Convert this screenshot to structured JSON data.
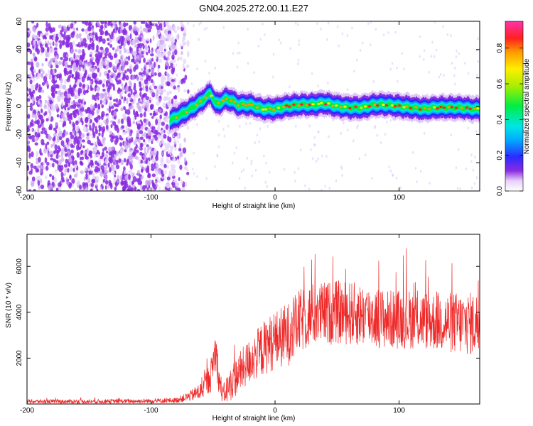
{
  "chart_data": [
    {
      "type": "heatmap",
      "title": "GN04.2025.272.00.11.E27",
      "xlabel": "Height of straight line (km)",
      "ylabel": "Frequency (Hz)",
      "xlim": [
        -200,
        165
      ],
      "ylim": [
        -60,
        60
      ],
      "x_ticks": [
        -200,
        -100,
        0,
        100
      ],
      "y_ticks": [
        60,
        40,
        20,
        0,
        -20,
        -40,
        -60
      ],
      "noise_region_x": [
        -200,
        -80
      ],
      "ridge": {
        "x": [
          -85,
          -80,
          -70,
          -60,
          -55,
          -52,
          -48,
          -45,
          -40,
          -35,
          -30,
          -20,
          -10,
          0,
          10,
          20,
          30,
          40,
          50,
          60,
          70,
          80,
          90,
          100,
          110,
          120,
          130,
          140,
          150,
          160,
          165
        ],
        "freq": [
          -10,
          -8,
          -3,
          3,
          7,
          9,
          2,
          2,
          5,
          4,
          1,
          1,
          -2,
          -2,
          0,
          1,
          1,
          2,
          0,
          -1,
          -1,
          1,
          1,
          0,
          -1,
          -2,
          -1,
          -1,
          -1,
          -2,
          -2
        ]
      },
      "colorbar": {
        "label": "Normalized spectral amplitude",
        "ticks": [
          "0.0",
          "0.2",
          "0.4",
          "0.6",
          "0.8"
        ],
        "range": [
          0,
          0.95
        ]
      }
    },
    {
      "type": "line",
      "xlabel": "Height of straight line (km)",
      "ylabel": "SNR (10 * v/v)",
      "xlim": [
        -200,
        165
      ],
      "ylim": [
        0,
        7400
      ],
      "x_ticks": [
        -200,
        -100,
        0,
        100
      ],
      "y_ticks": [
        2000,
        4000,
        6000
      ],
      "color": "#ee2a2a",
      "envelope": {
        "x": [
          -200,
          -150,
          -100,
          -80,
          -70,
          -60,
          -52,
          -48,
          -45,
          -42,
          -38,
          -30,
          -20,
          -10,
          0,
          10,
          20,
          30,
          50,
          70,
          90,
          110,
          130,
          150,
          165
        ],
        "base": [
          110,
          110,
          130,
          160,
          320,
          550,
          1200,
          2400,
          1000,
          400,
          700,
          1300,
          1900,
          2400,
          2800,
          3000,
          3600,
          3900,
          4000,
          3900,
          3700,
          3700,
          3600,
          3500,
          3500
        ],
        "amp": [
          90,
          90,
          100,
          120,
          200,
          400,
          700,
          900,
          700,
          400,
          700,
          900,
          1000,
          1200,
          1300,
          1400,
          1400,
          1400,
          1400,
          1400,
          1300,
          1300,
          1300,
          1400,
          1400
        ]
      }
    }
  ]
}
